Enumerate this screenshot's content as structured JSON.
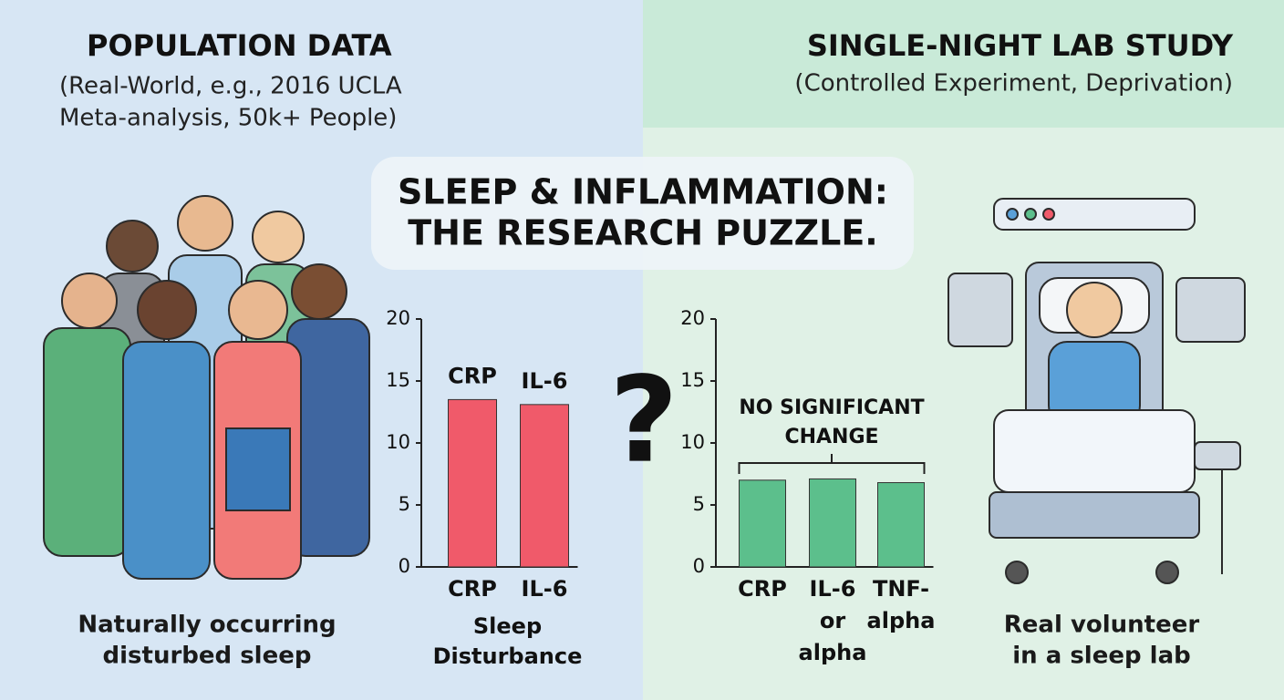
{
  "left_panel": {
    "title": "POPULATION DATA",
    "subtitle_lines": [
      "(Real-World, e.g., 2016 UCLA",
      "Meta-analysis, 50k+ People)"
    ],
    "caption_lines": [
      "Naturally occurring",
      "disturbed sleep"
    ]
  },
  "right_panel": {
    "title": "SINGLE-NIGHT LAB STUDY",
    "subtitle": "(Controlled Experiment, Deprivation)",
    "caption_lines": [
      "Real volunteer",
      "in a sleep lab"
    ]
  },
  "center": {
    "title_lines": [
      "SLEEP & INFLAMMATION:",
      "THE RESEARCH PUZZLE."
    ],
    "symbol": "?"
  },
  "chart_data": [
    {
      "type": "bar",
      "categories": [
        [
          "CRP"
        ],
        [
          "IL-6"
        ]
      ],
      "bar_labels": [
        "CRP",
        "IL-6"
      ],
      "values": [
        13.5,
        13.1
      ],
      "color": "#f05a6a",
      "xlabel_lines": [
        "Sleep",
        "Disturbance"
      ],
      "ylim": [
        0,
        20
      ],
      "yticks": [
        0,
        5,
        10,
        15,
        20
      ]
    },
    {
      "type": "bar",
      "categories": [
        [
          "CRP"
        ],
        [
          "IL-6",
          "or",
          "alpha"
        ],
        [
          "TNF-",
          "alpha"
        ]
      ],
      "values": [
        7.0,
        7.1,
        6.8
      ],
      "color": "#5cbf8c",
      "annotation_lines": [
        "NO SIGNIFICANT",
        "CHANGE"
      ],
      "ylim": [
        0,
        20
      ],
      "yticks": [
        0,
        5,
        10,
        15,
        20
      ]
    }
  ]
}
